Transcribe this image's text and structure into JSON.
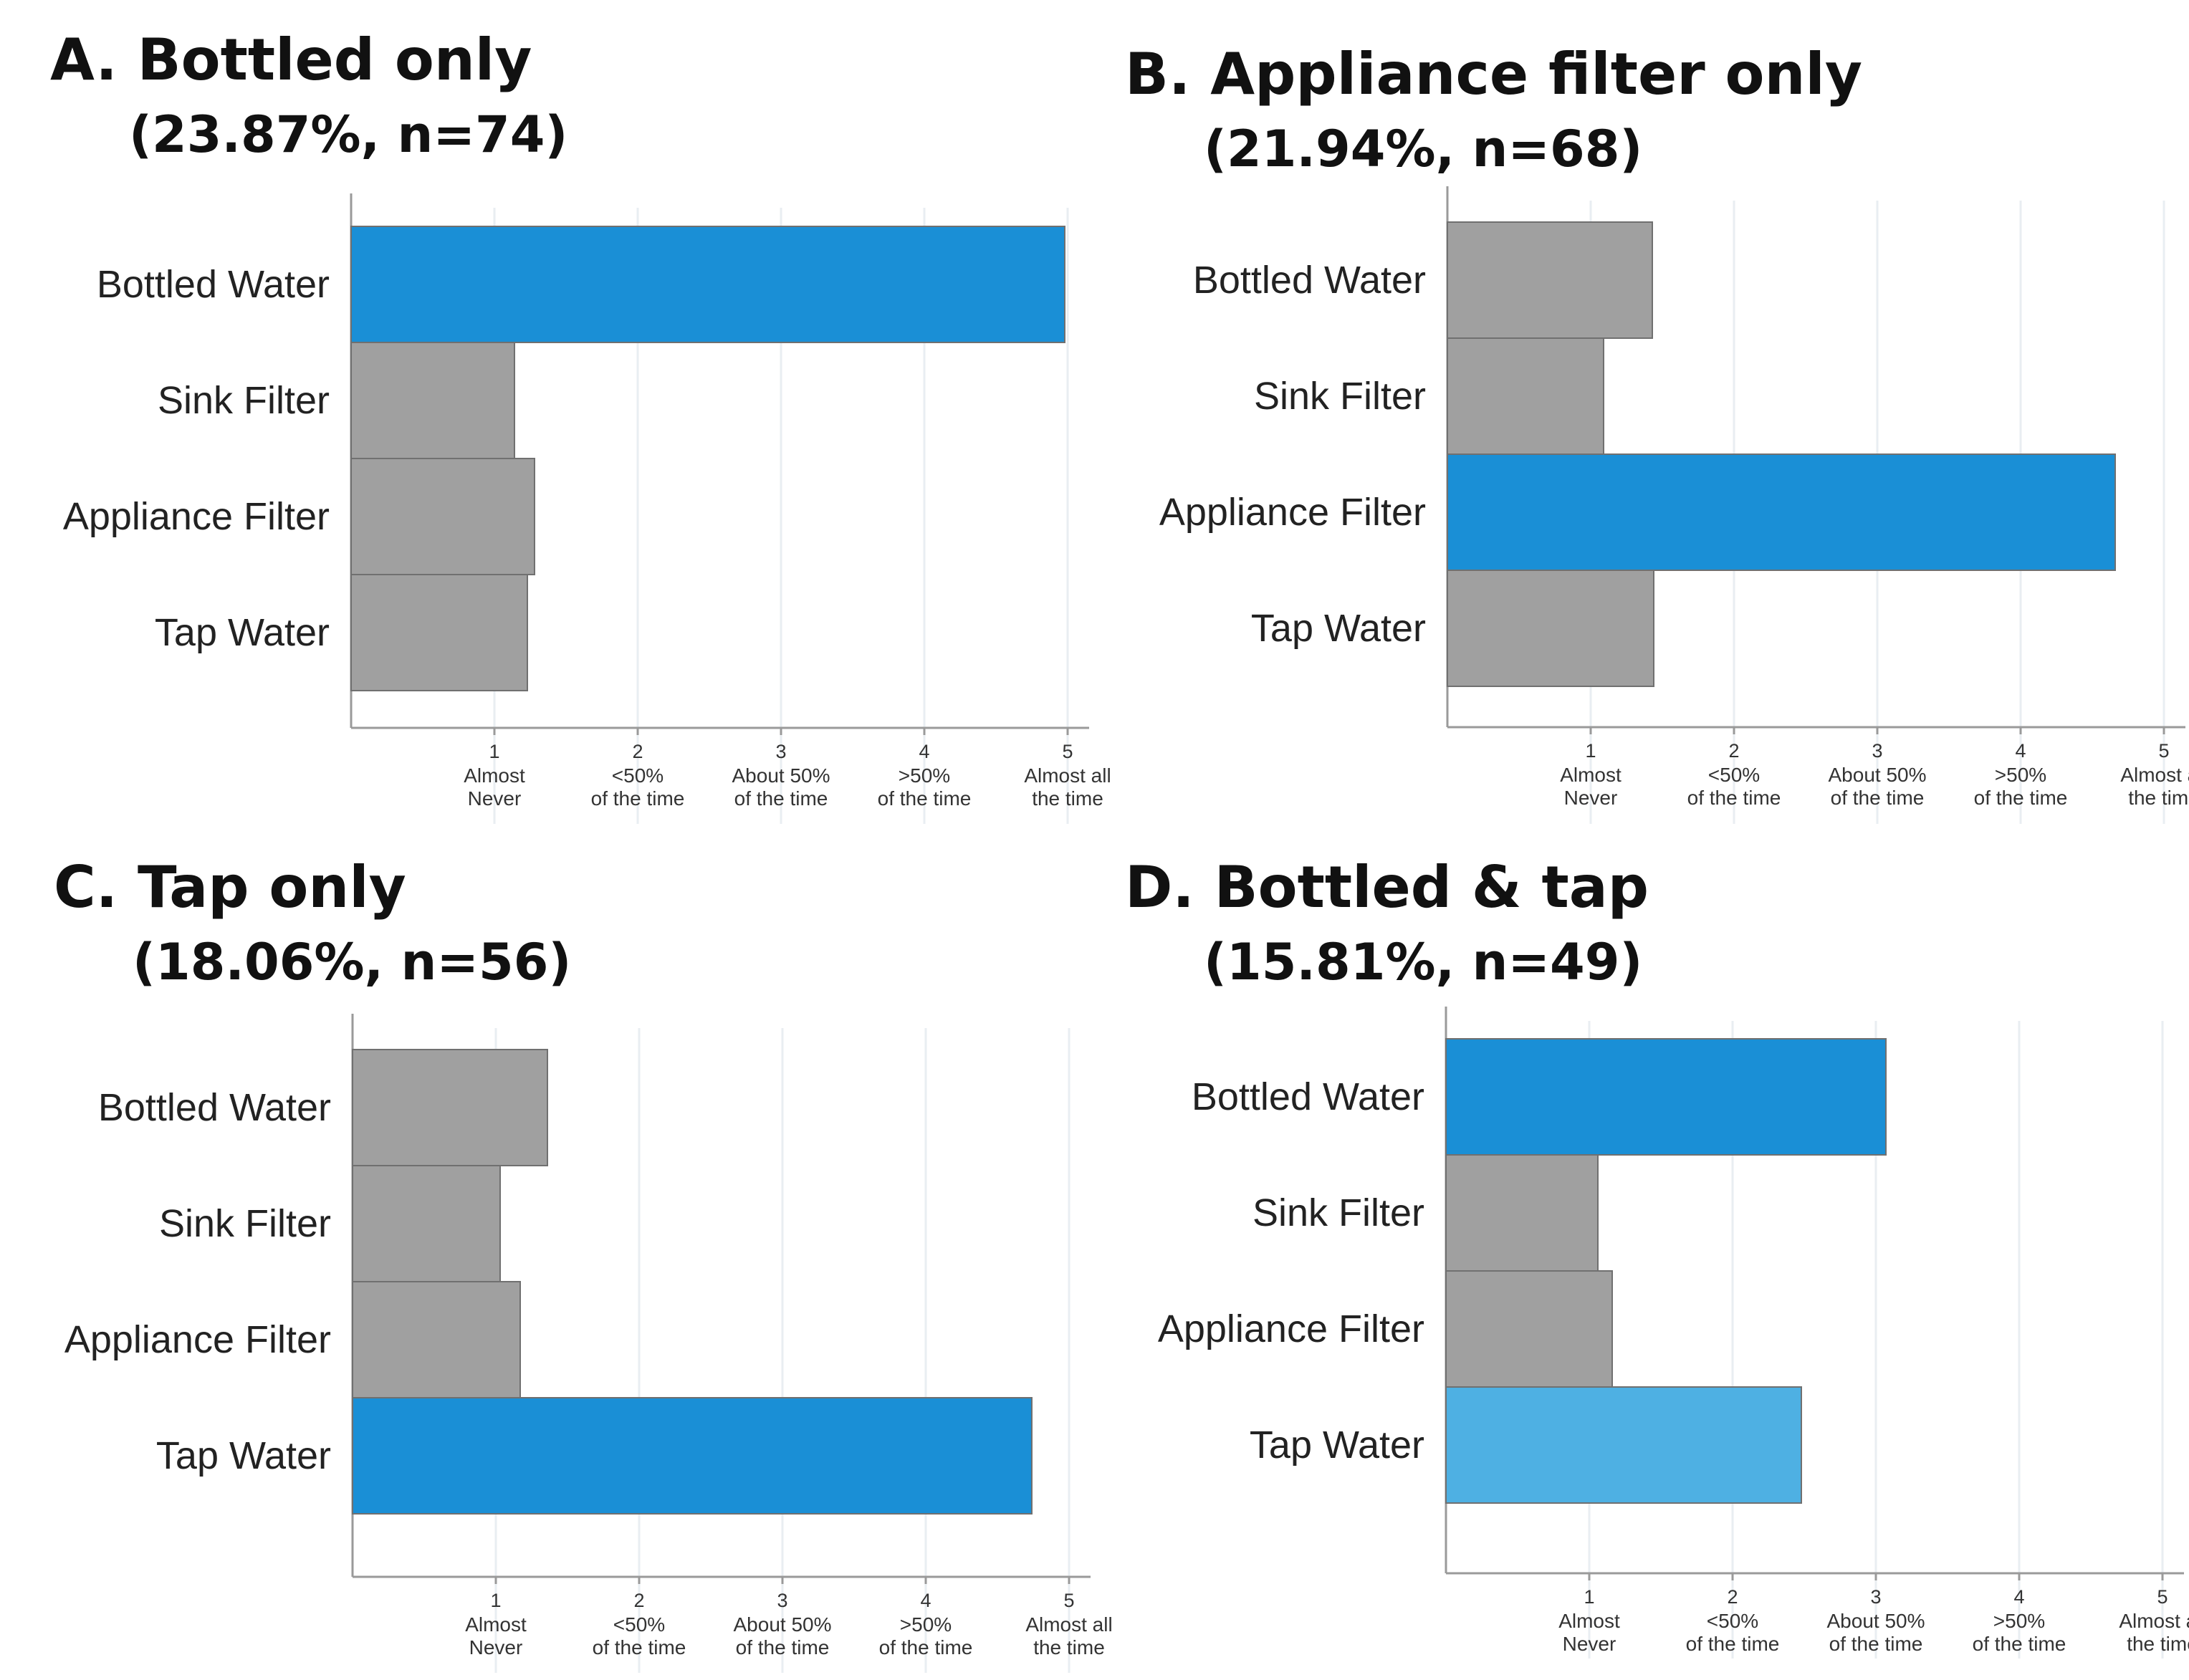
{
  "colors": {
    "highlight": "#1a8fd6",
    "highlight_light": "#4eb0e3",
    "neutral": "#a0a0a0",
    "bar_edge": "#707070",
    "grid": "#e9eef2",
    "axis": "#9a9a9a"
  },
  "chart_data": [
    {
      "type": "bar",
      "orientation": "horizontal",
      "title": "A. Bottled only",
      "subtitle": "(23.87%, n=74)",
      "categories": [
        "Bottled Water",
        "Sink Filter",
        "Appliance Filter",
        "Tap Water"
      ],
      "values": [
        4.98,
        1.14,
        1.28,
        1.23
      ],
      "highlight": [
        "strong",
        "none",
        "none",
        "none"
      ],
      "xlim": [
        0,
        5.15
      ],
      "ticks": [
        {
          "value": 1,
          "num": "1",
          "line1": "Almost",
          "line2": "Never"
        },
        {
          "value": 2,
          "num": "2",
          "line1": "<50%",
          "line2": "of the time"
        },
        {
          "value": 3,
          "num": "3",
          "line1": "About 50%",
          "line2": "of the time"
        },
        {
          "value": 4,
          "num": "4",
          "line1": ">50%",
          "line2": "of the time"
        },
        {
          "value": 5,
          "num": "5",
          "line1": "Almost all",
          "line2": "the time"
        }
      ],
      "grid": true
    },
    {
      "type": "bar",
      "orientation": "horizontal",
      "title": "B. Appliance filter only",
      "subtitle": "(21.94%, n=68)",
      "categories": [
        "Bottled Water",
        "Sink Filter",
        "Appliance Filter",
        "Tap Water"
      ],
      "values": [
        1.43,
        1.09,
        4.66,
        1.44
      ],
      "highlight": [
        "none",
        "none",
        "strong",
        "none"
      ],
      "xlim": [
        0,
        5.15
      ],
      "ticks": [
        {
          "value": 1,
          "num": "1",
          "line1": "Almost",
          "line2": "Never"
        },
        {
          "value": 2,
          "num": "2",
          "line1": "<50%",
          "line2": "of the time"
        },
        {
          "value": 3,
          "num": "3",
          "line1": "About 50%",
          "line2": "of the time"
        },
        {
          "value": 4,
          "num": "4",
          "line1": ">50%",
          "line2": "of the time"
        },
        {
          "value": 5,
          "num": "5",
          "line1": "Almost all",
          "line2": "the time"
        }
      ],
      "grid": true
    },
    {
      "type": "bar",
      "orientation": "horizontal",
      "title": "C. Tap only",
      "subtitle": "(18.06%, n=56)",
      "categories": [
        "Bottled Water",
        "Sink Filter",
        "Appliance Filter",
        "Tap Water"
      ],
      "values": [
        1.36,
        1.03,
        1.17,
        4.74
      ],
      "highlight": [
        "none",
        "none",
        "none",
        "strong"
      ],
      "xlim": [
        0,
        5.15
      ],
      "ticks": [
        {
          "value": 1,
          "num": "1",
          "line1": "Almost",
          "line2": "Never"
        },
        {
          "value": 2,
          "num": "2",
          "line1": "<50%",
          "line2": "of the time"
        },
        {
          "value": 3,
          "num": "3",
          "line1": "About 50%",
          "line2": "of the time"
        },
        {
          "value": 4,
          "num": "4",
          "line1": ">50%",
          "line2": "of the time"
        },
        {
          "value": 5,
          "num": "5",
          "line1": "Almost all",
          "line2": "the time"
        }
      ],
      "grid": true
    },
    {
      "type": "bar",
      "orientation": "horizontal",
      "title": "D. Bottled & tap",
      "subtitle": "(15.81%, n=49)",
      "categories": [
        "Bottled Water",
        "Sink Filter",
        "Appliance Filter",
        "Tap Water"
      ],
      "values": [
        3.07,
        1.06,
        1.16,
        2.48
      ],
      "highlight": [
        "strong",
        "none",
        "none",
        "light"
      ],
      "xlim": [
        0,
        5.15
      ],
      "ticks": [
        {
          "value": 1,
          "num": "1",
          "line1": "Almost",
          "line2": "Never"
        },
        {
          "value": 2,
          "num": "2",
          "line1": "<50%",
          "line2": "of the time"
        },
        {
          "value": 3,
          "num": "3",
          "line1": "About 50%",
          "line2": "of the time"
        },
        {
          "value": 4,
          "num": "4",
          "line1": ">50%",
          "line2": "of the time"
        },
        {
          "value": 5,
          "num": "5",
          "line1": "Almost all",
          "line2": "the time"
        }
      ],
      "grid": true
    }
  ]
}
